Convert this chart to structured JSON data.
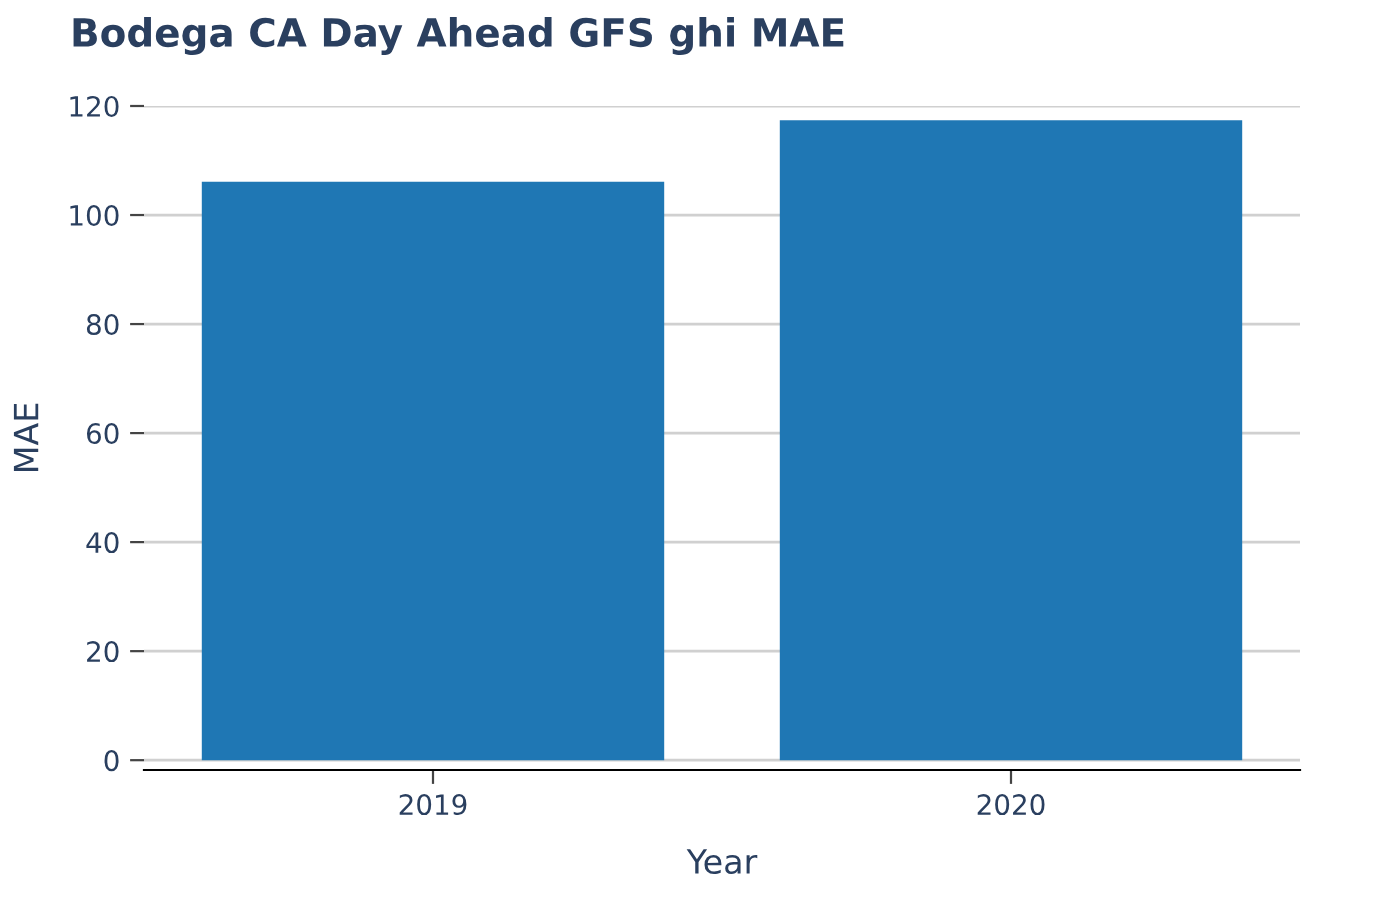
{
  "chart_data": {
    "type": "bar",
    "title": "Bodega CA Day Ahead GFS ghi MAE",
    "xlabel": "Year",
    "ylabel": "MAE",
    "categories": [
      "2019",
      "2020"
    ],
    "series": [
      {
        "color": "#1f77b4",
        "values": [
          106.1,
          117.4
        ]
      }
    ],
    "ylim": [
      -1.8,
      120
    ],
    "yticks": [
      0,
      20,
      40,
      60,
      80,
      100,
      120
    ],
    "grid": "y",
    "legend": false
  }
}
